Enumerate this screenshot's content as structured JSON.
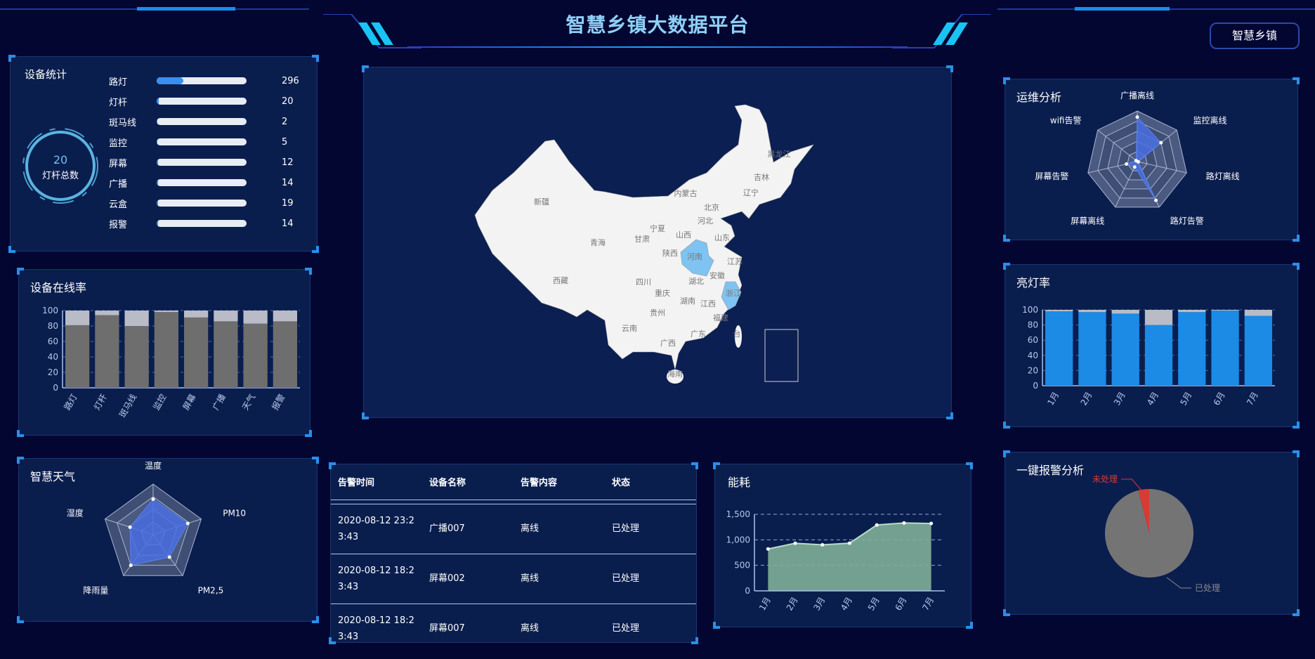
{
  "header": {
    "title": "智慧乡镇大数据平台",
    "town_button": "智慧乡镇"
  },
  "colors": {
    "accent": "#2a8fe8",
    "panel_bg": "#0a1e4e",
    "page_bg": "#020631",
    "title": "#8fd0f7",
    "highlight": "#7ec3f2"
  },
  "device_stats": {
    "title": "设备统计",
    "ring_value": "20",
    "ring_label": "灯杆总数",
    "items": [
      {
        "label": "路灯",
        "value": "296",
        "fill": 0.296
      },
      {
        "label": "灯杆",
        "value": "20",
        "fill": 0.02
      },
      {
        "label": "斑马线",
        "value": "2",
        "fill": 0.002
      },
      {
        "label": "监控",
        "value": "5",
        "fill": 0.005
      },
      {
        "label": "屏幕",
        "value": "12",
        "fill": 0.012
      },
      {
        "label": "广播",
        "value": "14",
        "fill": 0.014
      },
      {
        "label": "云盒",
        "value": "19",
        "fill": 0.019
      },
      {
        "label": "报警",
        "value": "14",
        "fill": 0.014
      }
    ]
  },
  "online_rate": {
    "title": "设备在线率"
  },
  "weather": {
    "title": "智慧天气"
  },
  "map": {
    "provinces": [
      "新疆",
      "青海",
      "西藏",
      "四川",
      "云南",
      "甘肃",
      "宁夏",
      "陕西",
      "山西",
      "河北",
      "北京",
      "内蒙古",
      "辽宁",
      "吉林",
      "黑龙江",
      "山东",
      "河南",
      "江苏",
      "安徽",
      "湖北",
      "重庆",
      "湖南",
      "江西",
      "浙江",
      "福建",
      "贵州",
      "广西",
      "广东",
      "海南",
      "台"
    ],
    "highlighted": [
      "河南",
      "浙江"
    ]
  },
  "alarm_table": {
    "headers": [
      "告警时间",
      "设备名称",
      "告警内容",
      "状态"
    ],
    "rows": [
      [
        "2020-08-12 23:23:43",
        "广播007",
        "离线",
        "已处理"
      ],
      [
        "2020-08-12 18:23:43",
        "屏幕002",
        "离线",
        "已处理"
      ],
      [
        "2020-08-12 18:23:43",
        "屏幕007",
        "离线",
        "已处理"
      ]
    ]
  },
  "energy": {
    "title": "能耗"
  },
  "ops": {
    "title": "运维分析"
  },
  "light_rate": {
    "title": "亮灯率"
  },
  "alarm_pie": {
    "title": "一键报警分析"
  },
  "chart_data": [
    {
      "id": "online",
      "type": "bar",
      "stacked": true,
      "categories": [
        "路灯",
        "灯杆",
        "斑马线",
        "监控",
        "屏幕",
        "广播",
        "天气",
        "报警"
      ],
      "series": [
        {
          "values": [
            81,
            94,
            80,
            98,
            91,
            86,
            83,
            86
          ],
          "color": "#6e6e6e"
        },
        {
          "values": [
            19,
            6,
            20,
            2,
            9,
            14,
            17,
            14
          ],
          "color": "#b9bcc6"
        }
      ],
      "ylim": [
        0,
        100
      ],
      "yticks": [
        0,
        20,
        40,
        60,
        80,
        100
      ],
      "grid": true
    },
    {
      "id": "weather",
      "type": "radar",
      "indicators": [
        "温度",
        "PM10",
        "PM2,5",
        "降雨量",
        "湿度"
      ],
      "values": [
        0.7,
        0.72,
        0.55,
        0.75,
        0.48
      ],
      "color": "#4a6fe0"
    },
    {
      "id": "energy",
      "type": "area",
      "categories": [
        "1月",
        "2月",
        "3月",
        "4月",
        "5月",
        "6月",
        "7月"
      ],
      "values": [
        820,
        932,
        901,
        934,
        1290,
        1330,
        1320
      ],
      "ylim": [
        0,
        1500
      ],
      "yticks": [
        "0",
        "500",
        "1,000",
        "1,500"
      ],
      "color": "#7fae99",
      "grid": true
    },
    {
      "id": "ops",
      "type": "radar",
      "indicators": [
        "广播离线",
        "监控离线",
        "路灯离线",
        "路灯告警",
        "屏幕离线",
        "屏幕告警",
        "wifi告警"
      ],
      "values": [
        0.88,
        0.6,
        0.02,
        0.85,
        0.12,
        0.22,
        0.03
      ],
      "color": "#4a6fe0"
    },
    {
      "id": "light",
      "type": "bar",
      "stacked": true,
      "categories": [
        "1月",
        "2月",
        "3月",
        "4月",
        "5月",
        "6月",
        "7月"
      ],
      "series": [
        {
          "values": [
            98,
            97,
            95,
            80,
            97,
            99,
            92
          ],
          "color": "#1b8be6"
        },
        {
          "values": [
            2,
            3,
            5,
            20,
            3,
            1,
            8
          ],
          "color": "#b9bcc6"
        }
      ],
      "ylim": [
        0,
        100
      ],
      "yticks": [
        0,
        20,
        40,
        60,
        80,
        100
      ],
      "grid": true
    },
    {
      "id": "pie",
      "type": "pie",
      "slices": [
        {
          "label": "未处理",
          "value": 4,
          "color": "#d83a35"
        },
        {
          "label": "已处理",
          "value": 96,
          "color": "#747474"
        }
      ]
    }
  ]
}
